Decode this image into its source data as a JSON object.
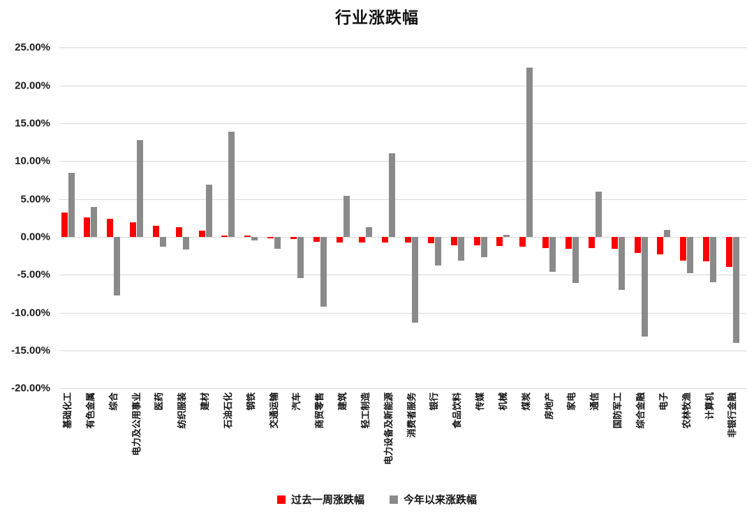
{
  "title": "行业涨跌幅",
  "legend": {
    "items": [
      {
        "label": "过去一周涨跌幅",
        "color": "#fe0000"
      },
      {
        "label": "今年以来涨跌幅",
        "color": "#8a8a8a"
      }
    ],
    "position": "bottom"
  },
  "colors": {
    "week_series": "#fe0000",
    "ytd_series": "#8a8a8a",
    "gridline": "#d9d9d9",
    "text": "#111111",
    "background": "#ffffff"
  },
  "y_axis": {
    "tick_labels": [
      "25.00%",
      "20.00%",
      "15.00%",
      "10.00%",
      "5.00%",
      "0.00%",
      "-5.00%",
      "-10.00%",
      "-15.00%",
      "-20.00%"
    ],
    "tick_values": [
      25,
      20,
      15,
      10,
      5,
      0,
      -5,
      -10,
      -15,
      -20
    ]
  },
  "chart_data": {
    "type": "bar",
    "title": "行业涨跌幅",
    "xlabel": "",
    "ylabel": "",
    "ylim": [
      -20,
      25
    ],
    "ytick_step": 5,
    "grid": true,
    "legend_position": "bottom",
    "value_unit": "percent",
    "categories": [
      "基础化工",
      "有色金属",
      "综合",
      "电力及公用事业",
      "医药",
      "纺织服装",
      "建材",
      "石油石化",
      "钢铁",
      "交通运输",
      "汽车",
      "商贸零售",
      "建筑",
      "轻工制造",
      "电力设备及新能源",
      "消费者服务",
      "银行",
      "食品饮料",
      "传媒",
      "机械",
      "煤炭",
      "房地产",
      "家电",
      "通信",
      "国防军工",
      "综合金融",
      "电子",
      "农林牧渔",
      "计算机",
      "非银行金融"
    ],
    "series": [
      {
        "name": "过去一周涨跌幅",
        "color": "#fe0000",
        "values": [
          3.2,
          2.6,
          2.4,
          1.9,
          1.5,
          1.3,
          0.8,
          0.2,
          0.2,
          -0.2,
          -0.3,
          -0.6,
          -0.7,
          -0.7,
          -0.7,
          -0.7,
          -0.8,
          -1.1,
          -1.1,
          -1.2,
          -1.3,
          -1.5,
          -1.6,
          -1.5,
          -1.6,
          -2.1,
          -2.3,
          -3.1,
          -3.2,
          -4.0
        ]
      },
      {
        "name": "今年以来涨跌幅",
        "color": "#8a8a8a",
        "values": [
          8.5,
          4.0,
          -7.7,
          12.8,
          -1.3,
          -1.7,
          6.9,
          13.9,
          -0.5,
          -1.6,
          -5.4,
          -9.2,
          5.4,
          1.3,
          11.0,
          -11.3,
          -3.8,
          -3.1,
          -2.7,
          0.3,
          22.4,
          -4.6,
          -6.1,
          6.0,
          -7.0,
          -13.2,
          0.9,
          -4.8,
          -6.0,
          -14.0
        ]
      }
    ]
  }
}
